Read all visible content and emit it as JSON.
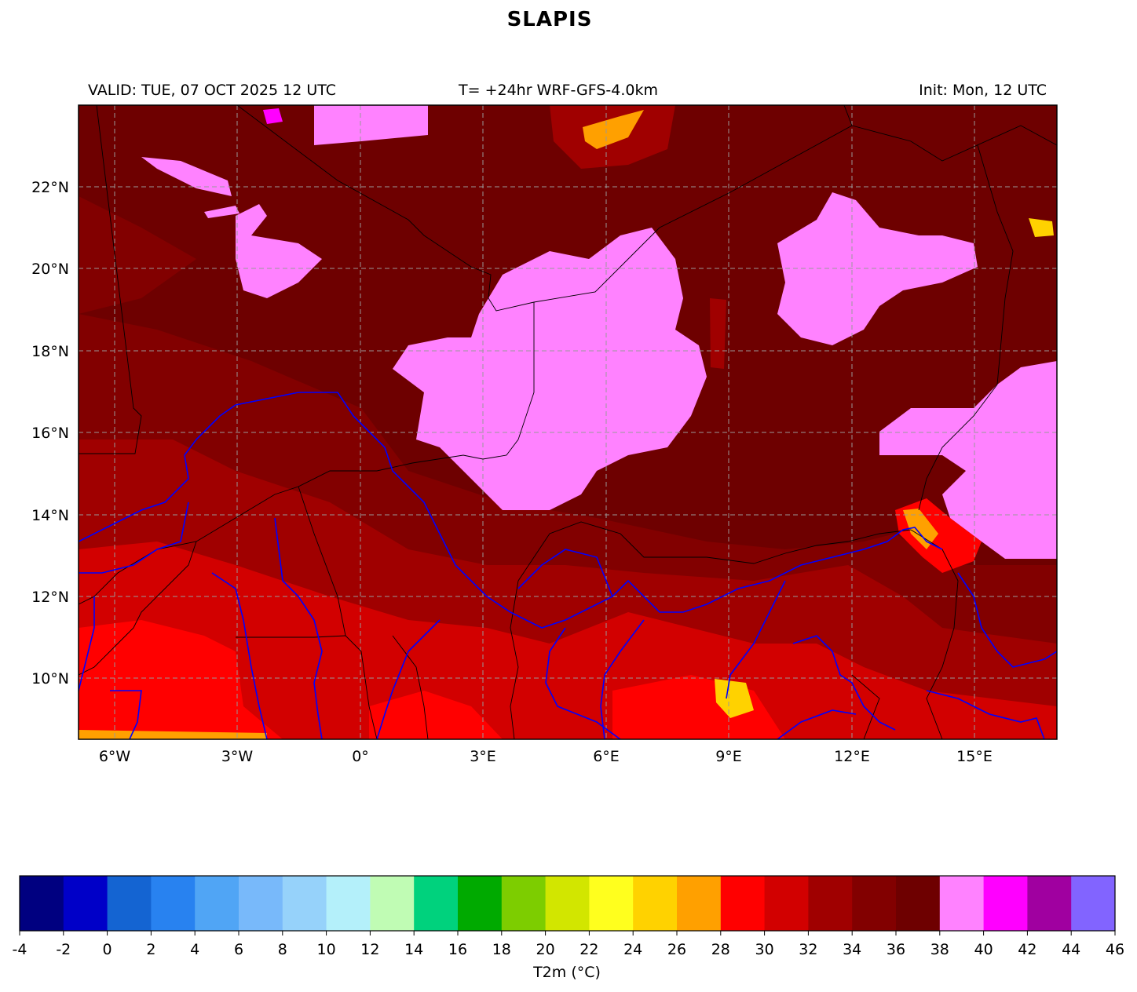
{
  "title": "SLAPIS",
  "header": {
    "valid": "VALID: TUE, 07 OCT 2025 12 UTC",
    "forecast": "T= +24hr WRF-GFS-4.0km",
    "init": "Init: Mon, 12 UTC"
  },
  "map": {
    "lat_ticks": [
      "22°N",
      "20°N",
      "18°N",
      "16°N",
      "14°N",
      "12°N",
      "10°N"
    ],
    "lon_ticks": [
      "6°W",
      "3°W",
      "0°",
      "3°E",
      "6°E",
      "9°E",
      "12°E",
      "15°E"
    ],
    "lat_range": [
      8.5,
      24
    ],
    "lon_range": [
      -7,
      17
    ],
    "colors": {
      "background": "#6e0000",
      "river": "#0000ff",
      "border": "#000000",
      "grid": "#999999"
    }
  },
  "colorbar": {
    "label": "T2m (°C)",
    "ticks": [
      "-4",
      "-2",
      "0",
      "2",
      "4",
      "6",
      "8",
      "10",
      "12",
      "14",
      "16",
      "18",
      "20",
      "22",
      "24",
      "26",
      "28",
      "30",
      "32",
      "34",
      "36",
      "38",
      "40",
      "42",
      "44",
      "46"
    ],
    "colors": [
      "#000080",
      "#0000c8",
      "#1464d2",
      "#2882f0",
      "#50a5f5",
      "#78b9fa",
      "#96d2fa",
      "#b4f0fa",
      "#c0fcb4",
      "#00d27d",
      "#00aa00",
      "#7dcd00",
      "#d2e600",
      "#ffff1e",
      "#ffd200",
      "#ffa000",
      "#ff0000",
      "#d20000",
      "#a00000",
      "#820000",
      "#6e0000",
      "#ff82ff",
      "#ff00ff",
      "#a000a0",
      "#8264ff"
    ]
  }
}
